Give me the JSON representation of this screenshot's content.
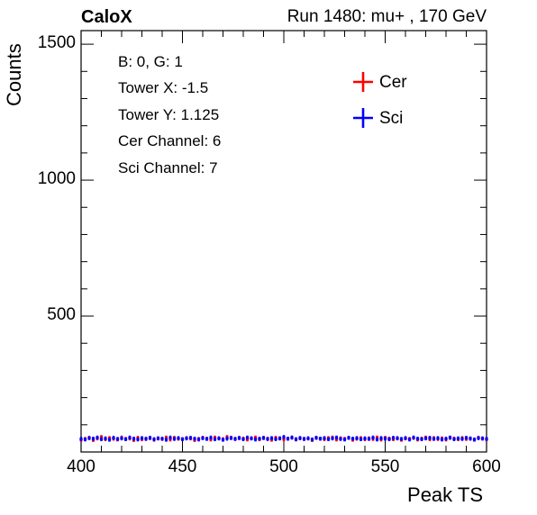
{
  "header": {
    "left_label": "CaloX",
    "right_label": "Run 1480: mu+ , 170 GeV"
  },
  "info_box": {
    "lines": [
      "B: 0, G: 1",
      "Tower X: -1.5",
      "Tower Y: 1.125",
      "Cer Channel: 6",
      "Sci Channel: 7"
    ]
  },
  "colors": {
    "cer": "#ff0000",
    "sci": "#0000ff",
    "axis": "#000000"
  },
  "chart_data": {
    "type": "scatter",
    "xlabel": "Peak TS",
    "ylabel": "Counts",
    "xlim": [
      400,
      600
    ],
    "ylim": [
      0,
      1550
    ],
    "x_ticks": [
      400,
      450,
      500,
      550,
      600
    ],
    "y_ticks": [
      500,
      1000,
      1500
    ],
    "grid": false,
    "legend_placement": "top-right",
    "x": [
      400,
      402,
      404,
      406,
      408,
      410,
      412,
      414,
      416,
      418,
      420,
      422,
      424,
      426,
      428,
      430,
      432,
      434,
      436,
      438,
      440,
      442,
      444,
      446,
      448,
      450,
      452,
      454,
      456,
      458,
      460,
      462,
      464,
      466,
      468,
      470,
      472,
      474,
      476,
      478,
      480,
      482,
      484,
      486,
      488,
      490,
      492,
      494,
      496,
      498,
      500,
      502,
      504,
      506,
      508,
      510,
      512,
      514,
      516,
      518,
      520,
      522,
      524,
      526,
      528,
      530,
      532,
      534,
      536,
      538,
      540,
      542,
      544,
      546,
      548,
      550,
      552,
      554,
      556,
      558,
      560,
      562,
      564,
      566,
      568,
      570,
      572,
      574,
      576,
      578,
      580,
      582,
      584,
      586,
      588,
      590,
      592,
      594,
      596,
      598,
      600
    ],
    "series": [
      {
        "name": "Cer",
        "values": [
          45,
          48,
          52,
          44,
          50,
          55,
          47,
          51,
          49,
          46,
          53,
          48,
          50,
          44,
          52,
          47,
          49,
          51,
          45,
          50,
          48,
          53,
          46,
          52,
          49,
          47,
          51,
          50,
          44,
          48,
          52,
          49,
          46,
          53,
          50,
          47,
          55,
          51,
          48,
          52,
          49,
          46,
          50,
          53,
          47,
          51,
          48,
          45,
          52,
          50,
          47,
          49,
          53,
          46,
          51,
          48,
          50,
          44,
          52,
          49,
          47,
          51,
          53,
          46,
          50,
          48,
          52,
          45,
          49,
          51,
          47,
          50,
          48,
          53,
          46,
          52,
          49,
          47,
          51,
          45,
          50,
          48,
          52,
          46,
          49,
          53,
          47,
          51,
          48,
          50,
          46,
          52,
          49,
          47,
          51,
          48,
          50,
          45,
          52,
          49,
          47
        ]
      },
      {
        "name": "Sci",
        "values": [
          48,
          46,
          51,
          49,
          53,
          47,
          50,
          45,
          52,
          48,
          50,
          47,
          53,
          49,
          46,
          51,
          48,
          52,
          47,
          50,
          49,
          45,
          53,
          48,
          51,
          47,
          50,
          52,
          49,
          46,
          51,
          48,
          53,
          47,
          50,
          45,
          49,
          52,
          48,
          51,
          47,
          53,
          50,
          46,
          49,
          52,
          48,
          51,
          47,
          50,
          55,
          49,
          53,
          47,
          51,
          48,
          50,
          46,
          52,
          49,
          51,
          47,
          50,
          53,
          48,
          46,
          52,
          49,
          51,
          47,
          50,
          48,
          53,
          46,
          51,
          49,
          47,
          52,
          50,
          48,
          51,
          46,
          53,
          49,
          47,
          50,
          52,
          48,
          51,
          46,
          49,
          53,
          47,
          50,
          48,
          52,
          49,
          46,
          51,
          50,
          48
        ]
      }
    ]
  }
}
